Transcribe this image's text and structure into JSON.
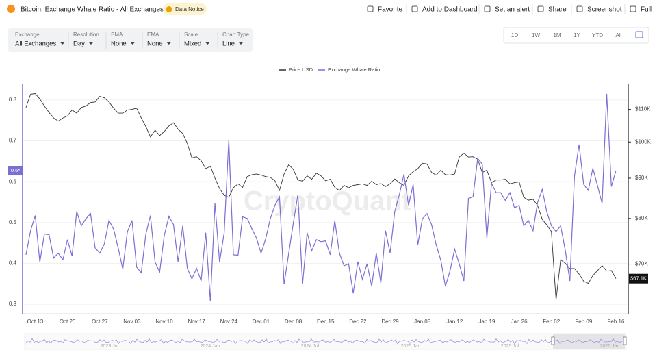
{
  "header": {
    "title": "Bitcoin: Exchange Whale Ratio - All Exchanges",
    "notice": "Data Notice",
    "actions": [
      "Favorite",
      "Add to Dashboard",
      "Set an alert",
      "Share",
      "Screenshot",
      "Full"
    ]
  },
  "filters": [
    {
      "label": "Exchange",
      "value": "All Exchanges"
    },
    {
      "label": "Resolution",
      "value": "Day"
    },
    {
      "label": "SMA",
      "value": "None"
    },
    {
      "label": "EMA",
      "value": "None"
    },
    {
      "label": "Scale",
      "value": "Mixed"
    },
    {
      "label": "Chart Type",
      "value": "Line"
    }
  ],
  "ranges": [
    "1D",
    "1W",
    "1M",
    "1Y",
    "YTD",
    "All"
  ],
  "watermark": "CryptoQuant",
  "navigator_labels": [
    "2023 Jul",
    "2024 Jan",
    "2024 Jul",
    "2025 Jan",
    "2025 Jul",
    "2026 Jan"
  ],
  "chart_data": {
    "type": "line",
    "categories": [
      null,
      null,
      "Oct 13",
      null,
      null,
      null,
      null,
      null,
      null,
      "Oct 20",
      null,
      null,
      null,
      null,
      null,
      null,
      "Oct 27",
      null,
      null,
      null,
      null,
      null,
      null,
      "Nov 03",
      null,
      null,
      null,
      null,
      null,
      null,
      "Nov 10",
      null,
      null,
      null,
      null,
      null,
      null,
      "Nov 17",
      null,
      null,
      null,
      null,
      null,
      null,
      "Nov 24",
      null,
      null,
      null,
      null,
      null,
      null,
      "Dec 01",
      null,
      null,
      null,
      null,
      null,
      null,
      "Dec 08",
      null,
      null,
      null,
      null,
      null,
      null,
      "Dec 15",
      null,
      null,
      null,
      null,
      null,
      null,
      "Dec 22",
      null,
      null,
      null,
      null,
      null,
      null,
      "Dec 29",
      null,
      null,
      null,
      null,
      null,
      null,
      "Jan 05",
      null,
      null,
      null,
      null,
      null,
      null,
      "Jan 12",
      null,
      null,
      null,
      null,
      null,
      null,
      "Jan 19",
      null,
      null,
      null,
      null,
      null,
      null,
      "Jan 26",
      null,
      null,
      null,
      null,
      null,
      null,
      "Feb 02",
      null,
      null,
      null,
      null,
      null,
      null,
      "Feb 09",
      null,
      null,
      null,
      null,
      null,
      null,
      "Feb 16"
    ],
    "series": [
      {
        "name": "Price USD",
        "color": "#333333",
        "axis": "y2",
        "last_value_label": "$67.1K",
        "values": [
          110600,
          115000,
          115200,
          113400,
          111100,
          109000,
          107300,
          106300,
          107300,
          107900,
          109800,
          108800,
          110600,
          111100,
          112200,
          112400,
          114300,
          113800,
          112400,
          110400,
          108800,
          108800,
          109800,
          110000,
          110400,
          107300,
          104600,
          101500,
          103500,
          101900,
          103100,
          104800,
          105800,
          103800,
          102500,
          99600,
          95500,
          95800,
          94700,
          92500,
          93200,
          90000,
          87300,
          85600,
          85100,
          87500,
          88500,
          87600,
          90400,
          90900,
          91100,
          90800,
          90400,
          90200,
          89300,
          86800,
          91100,
          93600,
          92300,
          89500,
          89200,
          90600,
          89700,
          91300,
          90600,
          89300,
          89700,
          87600,
          86800,
          88100,
          87500,
          88100,
          88300,
          88500,
          88100,
          89200,
          88300,
          88600,
          87800,
          88500,
          89800,
          88800,
          88100,
          90600,
          91700,
          92500,
          94000,
          93800,
          91500,
          90800,
          92100,
          90900,
          90800,
          91100,
          95700,
          96800,
          95700,
          95800,
          95100,
          91500,
          92100,
          88800,
          89500,
          89500,
          89700,
          88500,
          88800,
          89000,
          85100,
          84400,
          84600,
          83100,
          79800,
          78500,
          77000,
          63000,
          70900,
          70200,
          69100,
          69100,
          68000,
          66600,
          66200,
          67700,
          68700,
          69700,
          68600,
          68700,
          67100
        ]
      },
      {
        "name": "Exchange Whale Ratio",
        "color": "#7a6fd2",
        "axis": "y",
        "last_value_label": "0.6*",
        "values": [
          0.421,
          0.48,
          0.517,
          0.403,
          0.472,
          0.47,
          0.413,
          0.425,
          0.409,
          0.458,
          0.418,
          0.527,
          0.492,
          0.509,
          0.522,
          0.438,
          0.425,
          0.448,
          0.505,
          0.484,
          0.438,
          0.386,
          0.478,
          0.505,
          0.391,
          0.377,
          0.472,
          0.517,
          0.403,
          0.379,
          0.468,
          0.515,
          0.495,
          0.404,
          0.492,
          0.388,
          0.362,
          0.388,
          0.357,
          0.475,
          0.307,
          0.547,
          0.403,
          0.475,
          0.702,
          0.421,
          0.42,
          0.514,
          0.51,
          0.485,
          0.462,
          0.425,
          0.46,
          0.509,
          0.542,
          0.563,
          0.349,
          0.425,
          0.499,
          0.568,
          0.349,
          0.475,
          0.431,
          0.458,
          0.453,
          0.455,
          0.421,
          0.505,
          0.425,
          0.394,
          0.399,
          0.327,
          0.404,
          0.361,
          0.399,
          0.344,
          0.425,
          0.352,
          0.48,
          0.425,
          0.527,
          0.568,
          0.618,
          0.542,
          0.593,
          0.445,
          0.509,
          0.522,
          0.495,
          0.445,
          0.408,
          0.344,
          0.382,
          0.435,
          0.399,
          0.357,
          0.559,
          0.563,
          0.657,
          0.643,
          0.462,
          0.596,
          0.573,
          0.573,
          0.554,
          0.573,
          0.536,
          0.542,
          0.492,
          0.505,
          0.48,
          0.549,
          0.581,
          0.526,
          0.492,
          0.478,
          0.492,
          0.433,
          0.357,
          0.613,
          0.691,
          0.593,
          0.579,
          0.633,
          0.59,
          0.547,
          0.815,
          0.588,
          0.627
        ]
      }
    ],
    "ylim": [
      0.28,
      0.84
    ],
    "yticks": [
      0.3,
      0.4,
      0.5,
      0.6,
      0.7,
      0.8
    ],
    "y2lim": [
      60800,
      118600
    ],
    "y2_log": true,
    "y2ticks": [
      {
        "value": 70000,
        "label": "$70K"
      },
      {
        "value": 80000,
        "label": "$80K"
      },
      {
        "value": 90000,
        "label": "$90K"
      },
      {
        "value": 100000,
        "label": "$100K"
      },
      {
        "value": 110000,
        "label": "$110K"
      }
    ],
    "grid": true,
    "legend": "top"
  }
}
